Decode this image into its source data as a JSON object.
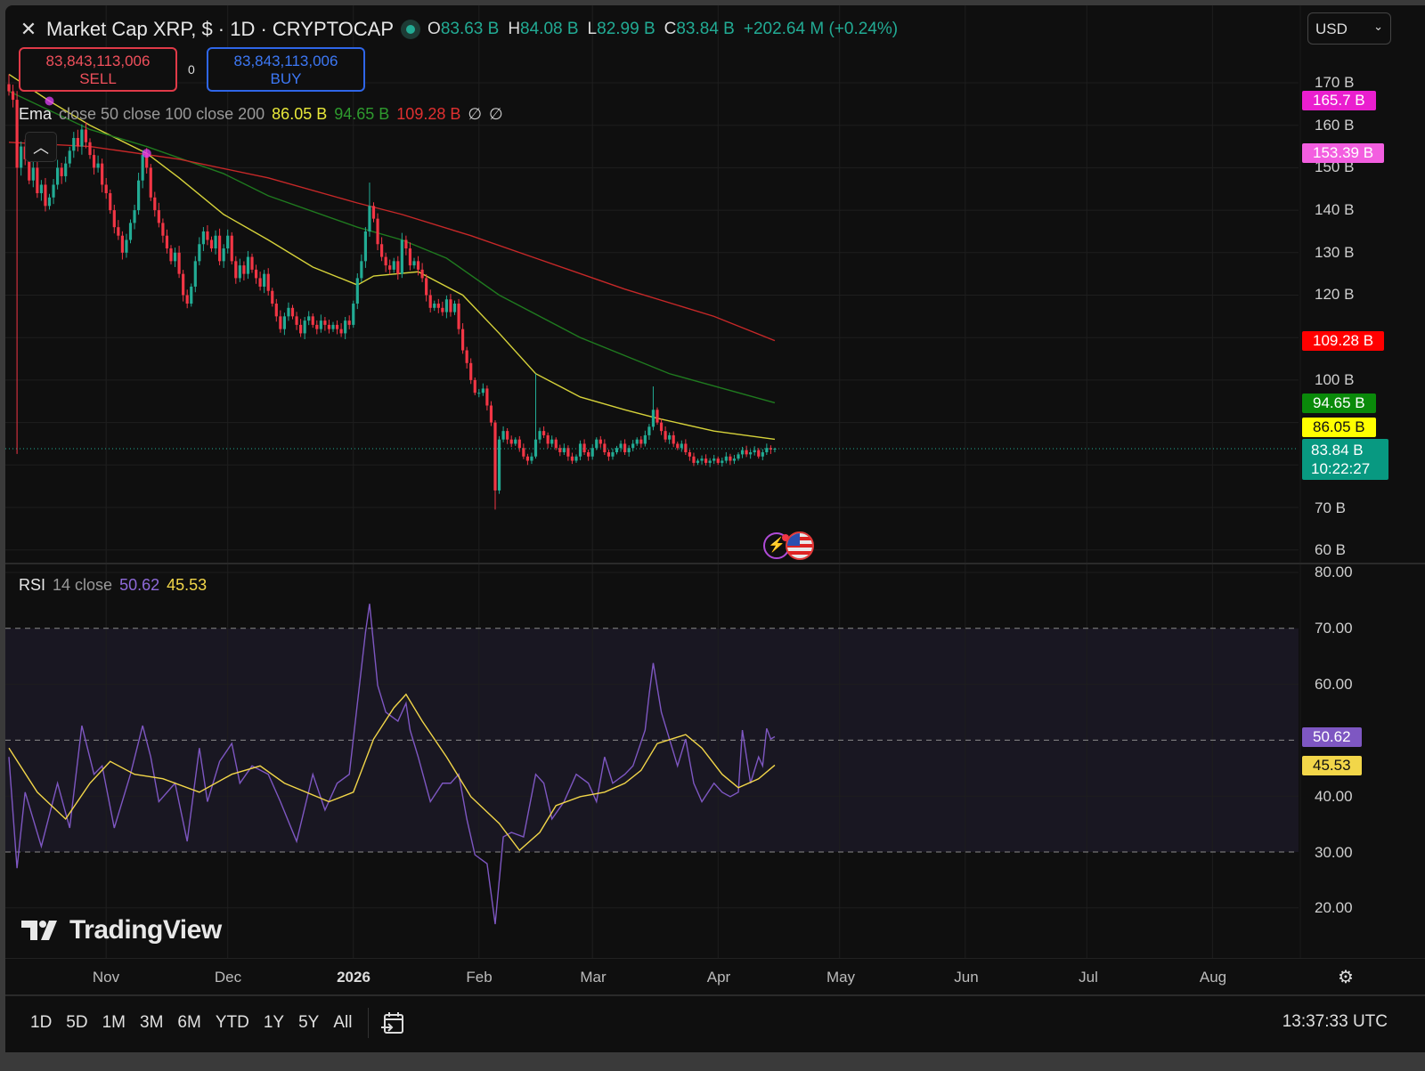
{
  "header": {
    "title": "Market Cap XRP, $ · 1D · CRYPTOCAP",
    "ohlc": {
      "o_label": "O",
      "o": "83.63 B",
      "h_label": "H",
      "h": "84.08 B",
      "l_label": "L",
      "l": "82.99 B",
      "c_label": "C",
      "c": "83.84 B",
      "change": "+202.64 M (+0.24%)"
    },
    "currency": "USD"
  },
  "trade": {
    "sell_price": "83,843,113,006",
    "sell_label": "SELL",
    "spread": "0",
    "buy_price": "83,843,113,006",
    "buy_label": "BUY"
  },
  "ema_legend": {
    "name": "Ema",
    "params": "close 50 close 100 close 200",
    "v50": "86.05 B",
    "v100": "94.65 B",
    "v200": "109.28 B",
    "extra1": "∅",
    "extra2": "∅"
  },
  "rsi_legend": {
    "name": "RSI",
    "params": "14 close",
    "rsi": "50.62",
    "ma": "45.53"
  },
  "price_axis": [
    "170 B",
    "160 B",
    "150 B",
    "140 B",
    "130 B",
    "120 B",
    "100 B",
    "70 B",
    "60 B"
  ],
  "rsi_axis": [
    "80.00",
    "70.00",
    "60.00",
    "40.00",
    "30.00",
    "20.00"
  ],
  "price_tags": {
    "marker1": "165.7 B",
    "marker2": "153.39 B",
    "ema200": "109.28 B",
    "ema100": "94.65 B",
    "ema50": "86.05 B",
    "last": "83.84 B",
    "countdown": "10:22:27",
    "rsi": "50.62",
    "rsi_ma": "45.53"
  },
  "time_axis": [
    "Nov",
    "Dec",
    "2026",
    "Feb",
    "Mar",
    "Apr",
    "May",
    "Jun",
    "Jul",
    "Aug"
  ],
  "toolbar": {
    "ranges": [
      "1D",
      "5D",
      "1M",
      "3M",
      "6M",
      "YTD",
      "1Y",
      "5Y",
      "All"
    ],
    "clock": "13:37:33 UTC"
  },
  "logo": "TradingView",
  "colors": {
    "up": "#22ab94",
    "down": "#f23645",
    "ema50": "#d6d23a",
    "ema100": "#1f7a1f",
    "ema200": "#c62828",
    "rsi": "#7e57c2",
    "rsi_ma": "#f2d649",
    "marker": "#e040fb"
  },
  "icons": [
    "close-icon",
    "live-dot-icon",
    "collapse-chevron-icon",
    "chevron-down-icon",
    "lightning-event-icon",
    "us-flag-icon",
    "settings-gear-icon",
    "calendar-goto-icon",
    "tradingview-logo-icon"
  ],
  "chart_data": {
    "type": "candlestick",
    "symbol": "Market Cap XRP",
    "interval": "1D",
    "ylim": [
      60,
      170
    ],
    "y_unit": "B",
    "x_ticks": [
      {
        "label": "Nov",
        "bar": 24
      },
      {
        "label": "Dec",
        "bar": 54
      },
      {
        "label": "2026",
        "bar": 85
      },
      {
        "label": "Feb",
        "bar": 116
      },
      {
        "label": "Mar",
        "bar": 144
      },
      {
        "label": "Apr",
        "bar": 175
      },
      {
        "label": "May",
        "bar": 205
      },
      {
        "label": "Jun",
        "bar": 236
      },
      {
        "label": "Jul",
        "bar": 266
      },
      {
        "label": "Aug",
        "bar": 297
      }
    ],
    "closes": [
      168,
      166,
      150,
      155,
      152,
      147,
      150,
      144,
      146,
      141,
      143,
      146,
      150,
      148,
      151,
      154,
      157,
      155,
      159,
      156,
      153,
      150,
      151,
      146,
      144,
      140,
      136,
      134,
      130,
      133,
      137,
      140,
      147,
      153,
      150,
      143,
      140,
      137,
      134,
      131,
      128,
      130,
      125,
      120,
      118,
      122,
      128,
      132,
      135,
      133,
      131,
      134,
      128,
      131,
      134,
      128,
      124,
      127,
      125,
      129,
      126,
      124,
      122,
      125,
      121,
      118,
      115,
      112,
      115,
      117,
      115,
      113,
      111,
      114,
      115,
      113,
      112,
      114,
      113,
      112,
      113,
      112,
      111,
      114,
      113,
      118,
      124,
      128,
      135,
      141,
      138,
      132,
      129,
      127,
      126,
      128,
      125,
      133,
      131,
      127,
      128,
      126,
      124,
      120,
      117,
      118,
      117,
      116,
      119,
      116,
      118,
      112,
      107,
      104,
      100,
      97,
      97,
      98,
      94,
      90,
      74,
      86,
      88,
      86,
      85,
      86,
      84,
      82,
      81,
      82,
      86,
      88,
      87,
      85,
      86,
      84,
      83,
      84,
      82,
      81,
      82,
      85,
      83,
      82,
      84,
      86,
      85,
      83,
      82,
      83,
      84,
      85,
      83,
      84,
      85,
      86,
      85,
      87,
      89,
      93,
      90,
      88,
      86,
      87,
      85,
      84,
      85,
      83,
      82,
      80.5,
      81,
      81.5,
      80.5,
      81,
      81.5,
      80.5,
      81,
      82,
      81,
      81.5,
      82.5,
      83.5,
      82.5,
      83,
      83.5,
      82,
      83,
      84,
      83.63,
      83.84
    ],
    "last_bar": {
      "open": 83.63,
      "high": 84.08,
      "low": 82.99,
      "close": 83.84
    },
    "notable_wicks": [
      {
        "bar": 0,
        "high": 172
      },
      {
        "bar": 2,
        "low": 82.6
      },
      {
        "bar": 89,
        "high": 146.5
      },
      {
        "bar": 120,
        "low": 69.5
      },
      {
        "bar": 130,
        "high": 101.5
      },
      {
        "bar": 159,
        "high": 98.5
      }
    ],
    "ema": [
      {
        "name": "Ema 50",
        "color": "#d6d23a",
        "points": [
          [
            0,
            172
          ],
          [
            10,
            165.7
          ],
          [
            20,
            160
          ],
          [
            34,
            153.39
          ],
          [
            42,
            147.6
          ],
          [
            53,
            139
          ],
          [
            64,
            133
          ],
          [
            75,
            126.6
          ],
          [
            86,
            122.4
          ],
          [
            90,
            124.5
          ],
          [
            101,
            125.5
          ],
          [
            112,
            120
          ],
          [
            121,
            111
          ],
          [
            130,
            101.5
          ],
          [
            141,
            96
          ],
          [
            152,
            93
          ],
          [
            160,
            91
          ],
          [
            174,
            88
          ],
          [
            189,
            86.05
          ]
        ]
      },
      {
        "name": "Ema 100",
        "color": "#1f7a1f",
        "points": [
          [
            0,
            168
          ],
          [
            20,
            159
          ],
          [
            34,
            155
          ],
          [
            53,
            148.6
          ],
          [
            64,
            143.4
          ],
          [
            86,
            136
          ],
          [
            97,
            133
          ],
          [
            108,
            128.7
          ],
          [
            121,
            120
          ],
          [
            141,
            110
          ],
          [
            163,
            101.5
          ],
          [
            189,
            94.65
          ]
        ]
      },
      {
        "name": "Ema 200",
        "color": "#c62828",
        "points": [
          [
            0,
            156
          ],
          [
            20,
            155
          ],
          [
            42,
            152
          ],
          [
            64,
            147.6
          ],
          [
            86,
            141.7
          ],
          [
            97,
            139
          ],
          [
            114,
            134
          ],
          [
            130,
            128.7
          ],
          [
            152,
            121.4
          ],
          [
            174,
            115
          ],
          [
            189,
            109.28
          ]
        ]
      }
    ],
    "markers": [
      {
        "bar": 10,
        "value": 165.7
      },
      {
        "bar": 34,
        "value": 153.39
      }
    ],
    "rsi": {
      "ylim": [
        15,
        82
      ],
      "levels": [
        70,
        50,
        30
      ],
      "points": [
        [
          0,
          47
        ],
        [
          2,
          27.1
        ],
        [
          4,
          40.7
        ],
        [
          8,
          31
        ],
        [
          12,
          42.3
        ],
        [
          15,
          34.3
        ],
        [
          18,
          52.6
        ],
        [
          21,
          43.9
        ],
        [
          23,
          45.4
        ],
        [
          26,
          34.3
        ],
        [
          30,
          43.9
        ],
        [
          33,
          52.6
        ],
        [
          35,
          47
        ],
        [
          37,
          39
        ],
        [
          41,
          42.3
        ],
        [
          44,
          31.9
        ],
        [
          47,
          48.6
        ],
        [
          49,
          39
        ],
        [
          52,
          46.2
        ],
        [
          55,
          49.4
        ],
        [
          57,
          42.3
        ],
        [
          60,
          45.4
        ],
        [
          64,
          43.9
        ],
        [
          67,
          39
        ],
        [
          71,
          31.9
        ],
        [
          75,
          43.9
        ],
        [
          78,
          37.5
        ],
        [
          81,
          42.3
        ],
        [
          84,
          43.9
        ],
        [
          86,
          56.6
        ],
        [
          88,
          69.3
        ],
        [
          89,
          74.4
        ],
        [
          91,
          59.8
        ],
        [
          93,
          55
        ],
        [
          96,
          53.4
        ],
        [
          98,
          56.6
        ],
        [
          99,
          51.8
        ],
        [
          101,
          47
        ],
        [
          104,
          39
        ],
        [
          107,
          42.3
        ],
        [
          109,
          42.3
        ],
        [
          111,
          43.9
        ],
        [
          113,
          35.9
        ],
        [
          115,
          29.5
        ],
        [
          118,
          27.9
        ],
        [
          120,
          17.1
        ],
        [
          122,
          32.7
        ],
        [
          124,
          33.5
        ],
        [
          127,
          32.7
        ],
        [
          130,
          43.9
        ],
        [
          132,
          42.3
        ],
        [
          134,
          35.9
        ],
        [
          137,
          39
        ],
        [
          140,
          43.9
        ],
        [
          143,
          42.3
        ],
        [
          145,
          39
        ],
        [
          147,
          47
        ],
        [
          149,
          42.3
        ],
        [
          152,
          43.9
        ],
        [
          154,
          45.4
        ],
        [
          157,
          51.8
        ],
        [
          158,
          58.2
        ],
        [
          159,
          63.8
        ],
        [
          161,
          55
        ],
        [
          163,
          50.2
        ],
        [
          165,
          45.4
        ],
        [
          167,
          50.2
        ],
        [
          169,
          42.3
        ],
        [
          171,
          39
        ],
        [
          174,
          42.3
        ],
        [
          176,
          40.7
        ],
        [
          178,
          39.9
        ],
        [
          180,
          40.7
        ],
        [
          181,
          51.8
        ],
        [
          183,
          42.3
        ],
        [
          185,
          47
        ],
        [
          186,
          45.4
        ],
        [
          187,
          52.1
        ],
        [
          188,
          50.2
        ],
        [
          189,
          50.62
        ]
      ],
      "ma_points": [
        [
          0,
          48.6
        ],
        [
          7,
          40.7
        ],
        [
          14,
          35.9
        ],
        [
          20,
          42.3
        ],
        [
          25,
          46.2
        ],
        [
          31,
          43.9
        ],
        [
          38,
          43.1
        ],
        [
          47,
          40.7
        ],
        [
          55,
          43.9
        ],
        [
          62,
          45.4
        ],
        [
          68,
          42.3
        ],
        [
          79,
          39
        ],
        [
          85,
          40.7
        ],
        [
          90,
          50.2
        ],
        [
          95,
          55.8
        ],
        [
          98,
          58.2
        ],
        [
          102,
          53.4
        ],
        [
          108,
          47
        ],
        [
          114,
          39.9
        ],
        [
          121,
          35.1
        ],
        [
          126,
          30.3
        ],
        [
          131,
          33.5
        ],
        [
          135,
          38.3
        ],
        [
          141,
          39.9
        ],
        [
          147,
          40.7
        ],
        [
          152,
          42.3
        ],
        [
          156,
          44.6
        ],
        [
          160,
          49.4
        ],
        [
          167,
          51
        ],
        [
          171,
          48.6
        ],
        [
          176,
          43.9
        ],
        [
          180,
          41.5
        ],
        [
          185,
          43.1
        ],
        [
          189,
          45.53
        ]
      ]
    }
  }
}
